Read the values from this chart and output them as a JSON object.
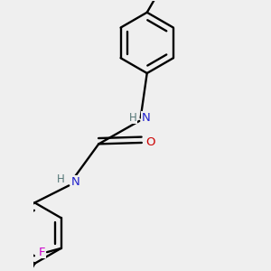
{
  "bg": "#efefef",
  "bond_color": "#000000",
  "N_color": "#2222cc",
  "O_color": "#cc0000",
  "F_color": "#cc00cc",
  "H_color": "#557777",
  "lw": 1.7,
  "figsize": [
    3.0,
    3.0
  ],
  "dpi": 100,
  "xlim": [
    -1.6,
    1.6
  ],
  "ylim": [
    -2.1,
    2.1
  ]
}
